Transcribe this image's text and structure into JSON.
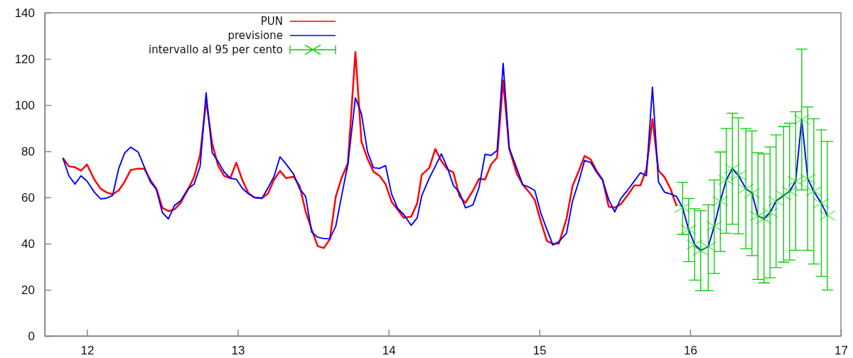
{
  "chart_data": {
    "type": "line",
    "x": [
      11.84,
      11.88,
      11.92,
      11.96,
      12.0,
      12.05,
      12.09,
      12.13,
      12.17,
      12.21,
      12.25,
      12.29,
      12.34,
      12.38,
      12.42,
      12.46,
      12.5,
      12.54,
      12.58,
      12.62,
      12.67,
      12.71,
      12.75,
      12.79,
      12.83,
      12.87,
      12.91,
      12.95,
      12.99,
      13.03,
      13.07,
      13.11,
      13.16,
      13.2,
      13.24,
      13.28,
      13.32,
      13.37,
      13.41,
      13.45,
      13.49,
      13.53,
      13.57,
      13.61,
      13.65,
      13.69,
      13.73,
      13.78,
      13.82,
      13.86,
      13.9,
      13.94,
      13.98,
      14.02,
      14.06,
      14.1,
      14.15,
      14.19,
      14.22,
      14.27,
      14.31,
      14.35,
      14.39,
      14.43,
      14.47,
      14.51,
      14.56,
      14.6,
      14.64,
      14.68,
      14.72,
      14.76,
      14.8,
      14.85,
      14.89,
      14.93,
      14.97,
      15.01,
      15.05,
      15.09,
      15.13,
      15.18,
      15.22,
      15.26,
      15.3,
      15.34,
      15.38,
      15.42,
      15.46,
      15.5,
      15.54,
      15.59,
      15.63,
      15.67,
      15.71,
      15.75,
      15.79,
      15.83,
      15.87,
      15.91
    ],
    "series": [
      {
        "name": "PUN",
        "color": "#ff0000",
        "values": [
          77.1,
          73.5,
          73.1,
          71.6,
          74.3,
          67.6,
          63.8,
          62.2,
          61.4,
          63.0,
          66.9,
          71.9,
          72.5,
          72.5,
          67.6,
          63.8,
          55.5,
          54.1,
          54.8,
          57.5,
          63.5,
          68.8,
          78.4,
          101.9,
          83.5,
          73.7,
          69.3,
          68.4,
          75.1,
          67.6,
          61.9,
          60.0,
          59.7,
          61.7,
          67.6,
          71.5,
          68.4,
          69.0,
          65.0,
          53.9,
          46.1,
          38.9,
          38.1,
          41.8,
          60.4,
          68.8,
          74.8,
          123.0,
          84.2,
          76.8,
          71.2,
          69.4,
          65.8,
          58.1,
          54.8,
          51.2,
          51.7,
          57.5,
          69.8,
          72.8,
          81.0,
          75.8,
          72.2,
          70.9,
          60.6,
          57.7,
          63.0,
          68.1,
          67.8,
          74.3,
          77.3,
          110.7,
          81.1,
          70.4,
          65.5,
          62.5,
          58.9,
          49.6,
          41.2,
          39.9,
          40.1,
          50.7,
          65.0,
          71.2,
          78.0,
          76.5,
          71.5,
          67.6,
          56.0,
          55.6,
          57.1,
          61.4,
          65.2,
          65.2,
          72.2,
          93.9,
          71.7,
          68.8,
          63.7,
          56.3
        ]
      },
      {
        "name": "previsione",
        "color": "#0000ff",
        "x": [
          11.84,
          11.88,
          11.92,
          11.96,
          12.0,
          12.05,
          12.09,
          12.13,
          12.17,
          12.21,
          12.25,
          12.29,
          12.34,
          12.38,
          12.42,
          12.46,
          12.5,
          12.54,
          12.58,
          12.62,
          12.67,
          12.71,
          12.75,
          12.79,
          12.83,
          12.87,
          12.91,
          12.95,
          12.99,
          13.03,
          13.07,
          13.11,
          13.16,
          13.2,
          13.24,
          13.28,
          13.32,
          13.37,
          13.41,
          13.45,
          13.49,
          13.53,
          13.57,
          13.61,
          13.65,
          13.69,
          13.73,
          13.78,
          13.82,
          13.86,
          13.9,
          13.94,
          13.98,
          14.02,
          14.06,
          14.1,
          14.15,
          14.19,
          14.22,
          14.27,
          14.31,
          14.35,
          14.39,
          14.43,
          14.47,
          14.51,
          14.56,
          14.6,
          14.64,
          14.68,
          14.72,
          14.76,
          14.8,
          14.85,
          14.89,
          14.93,
          14.97,
          15.01,
          15.05,
          15.09,
          15.13,
          15.18,
          15.22,
          15.26,
          15.3,
          15.34,
          15.38,
          15.42,
          15.46,
          15.5,
          15.54,
          15.59,
          15.63,
          15.67,
          15.71,
          15.75,
          15.79,
          15.83,
          15.87,
          15.91,
          15.95,
          15.99,
          16.03,
          16.07,
          16.12,
          16.16,
          16.2,
          16.24,
          16.28,
          16.32,
          16.37,
          16.41,
          16.45,
          16.49,
          16.53,
          16.57,
          16.62,
          16.66,
          16.7,
          16.74,
          16.78,
          16.82,
          16.87,
          16.91
        ],
        "values": [
          77.1,
          69.4,
          65.8,
          69.4,
          67.1,
          62.2,
          59.4,
          59.7,
          60.9,
          72.5,
          79.3,
          81.8,
          79.6,
          73.2,
          66.8,
          63.5,
          53.4,
          50.7,
          56.5,
          58.5,
          63.8,
          65.8,
          73.4,
          105.3,
          79.4,
          75.5,
          71.0,
          68.3,
          67.9,
          64.0,
          61.6,
          60.0,
          59.6,
          64.1,
          69.0,
          77.6,
          74.5,
          70.1,
          63.8,
          60.4,
          45.0,
          42.8,
          42.2,
          42.2,
          47.6,
          61.2,
          74.3,
          103.2,
          96.3,
          79.9,
          72.9,
          72.6,
          73.8,
          61.5,
          55.3,
          52.7,
          47.9,
          51.2,
          60.7,
          68.4,
          73.5,
          78.9,
          72.9,
          65.2,
          62.2,
          55.5,
          56.8,
          64.3,
          78.7,
          78.2,
          80.4,
          118.1,
          81.4,
          72.7,
          65.5,
          64.5,
          63.0,
          53.2,
          46.1,
          39.4,
          40.9,
          44.5,
          58.4,
          66.6,
          76.0,
          75.2,
          70.9,
          67.4,
          59.1,
          53.7,
          59.5,
          63.6,
          67.1,
          70.7,
          69.4,
          107.8,
          66.8,
          62.3,
          61.5,
          60.4,
          55.6,
          46.1,
          39.6,
          37.0,
          38.7,
          47.6,
          58.4,
          67.6,
          72.5,
          69.6,
          63.8,
          61.9,
          52.0,
          50.7,
          53.5,
          58.4,
          60.9,
          62.7,
          67.1,
          93.8,
          68.1,
          62.7,
          57.5,
          52.2
        ]
      },
      {
        "name": "intervallo al 95 per cento",
        "type": "scatter",
        "color": "#00cc00",
        "marker": "cross",
        "x": [
          15.95,
          15.99,
          16.03,
          16.07,
          16.12,
          16.16,
          16.2,
          16.24,
          16.28,
          16.32,
          16.37,
          16.41,
          16.45,
          16.49,
          16.53,
          16.57,
          16.62,
          16.66,
          16.7,
          16.74,
          16.78,
          16.82,
          16.87,
          16.91
        ],
        "values": [
          55.6,
          46.1,
          39.6,
          37.0,
          38.7,
          47.6,
          58.4,
          67.6,
          72.5,
          69.6,
          63.8,
          61.9,
          52.0,
          50.7,
          53.5,
          58.4,
          60.9,
          62.7,
          67.1,
          93.8,
          68.1,
          62.7,
          57.5,
          52.2
        ],
        "errors": [
          [
            44.0,
            66.6
          ],
          [
            32.2,
            59.6
          ],
          [
            24.2,
            55.1
          ],
          [
            19.6,
            54.3
          ],
          [
            19.6,
            56.8
          ],
          [
            27.1,
            67.6
          ],
          [
            36.6,
            79.7
          ],
          [
            44.5,
            89.9
          ],
          [
            48.4,
            96.5
          ],
          [
            44.3,
            94.5
          ],
          [
            37.8,
            89.9
          ],
          [
            34.8,
            88.8
          ],
          [
            24.5,
            79.4
          ],
          [
            23.0,
            78.9
          ],
          [
            25.2,
            81.9
          ],
          [
            29.6,
            87.1
          ],
          [
            32.0,
            90.7
          ],
          [
            32.9,
            92.2
          ],
          [
            37.1,
            97.1
          ],
          [
            63.3,
            124.3
          ],
          [
            37.1,
            99.2
          ],
          [
            31.2,
            94.1
          ],
          [
            25.8,
            89.3
          ],
          [
            19.9,
            84.3
          ]
        ]
      }
    ],
    "xlim": [
      11.72,
      17
    ],
    "xticks": [
      12,
      13,
      14,
      15,
      16,
      17
    ],
    "ylim": [
      0,
      140
    ],
    "yticks": [
      0,
      20,
      40,
      60,
      80,
      100,
      120,
      140
    ],
    "legend": "top left",
    "grid": false,
    "marker": "none",
    "line_style": "solid"
  }
}
